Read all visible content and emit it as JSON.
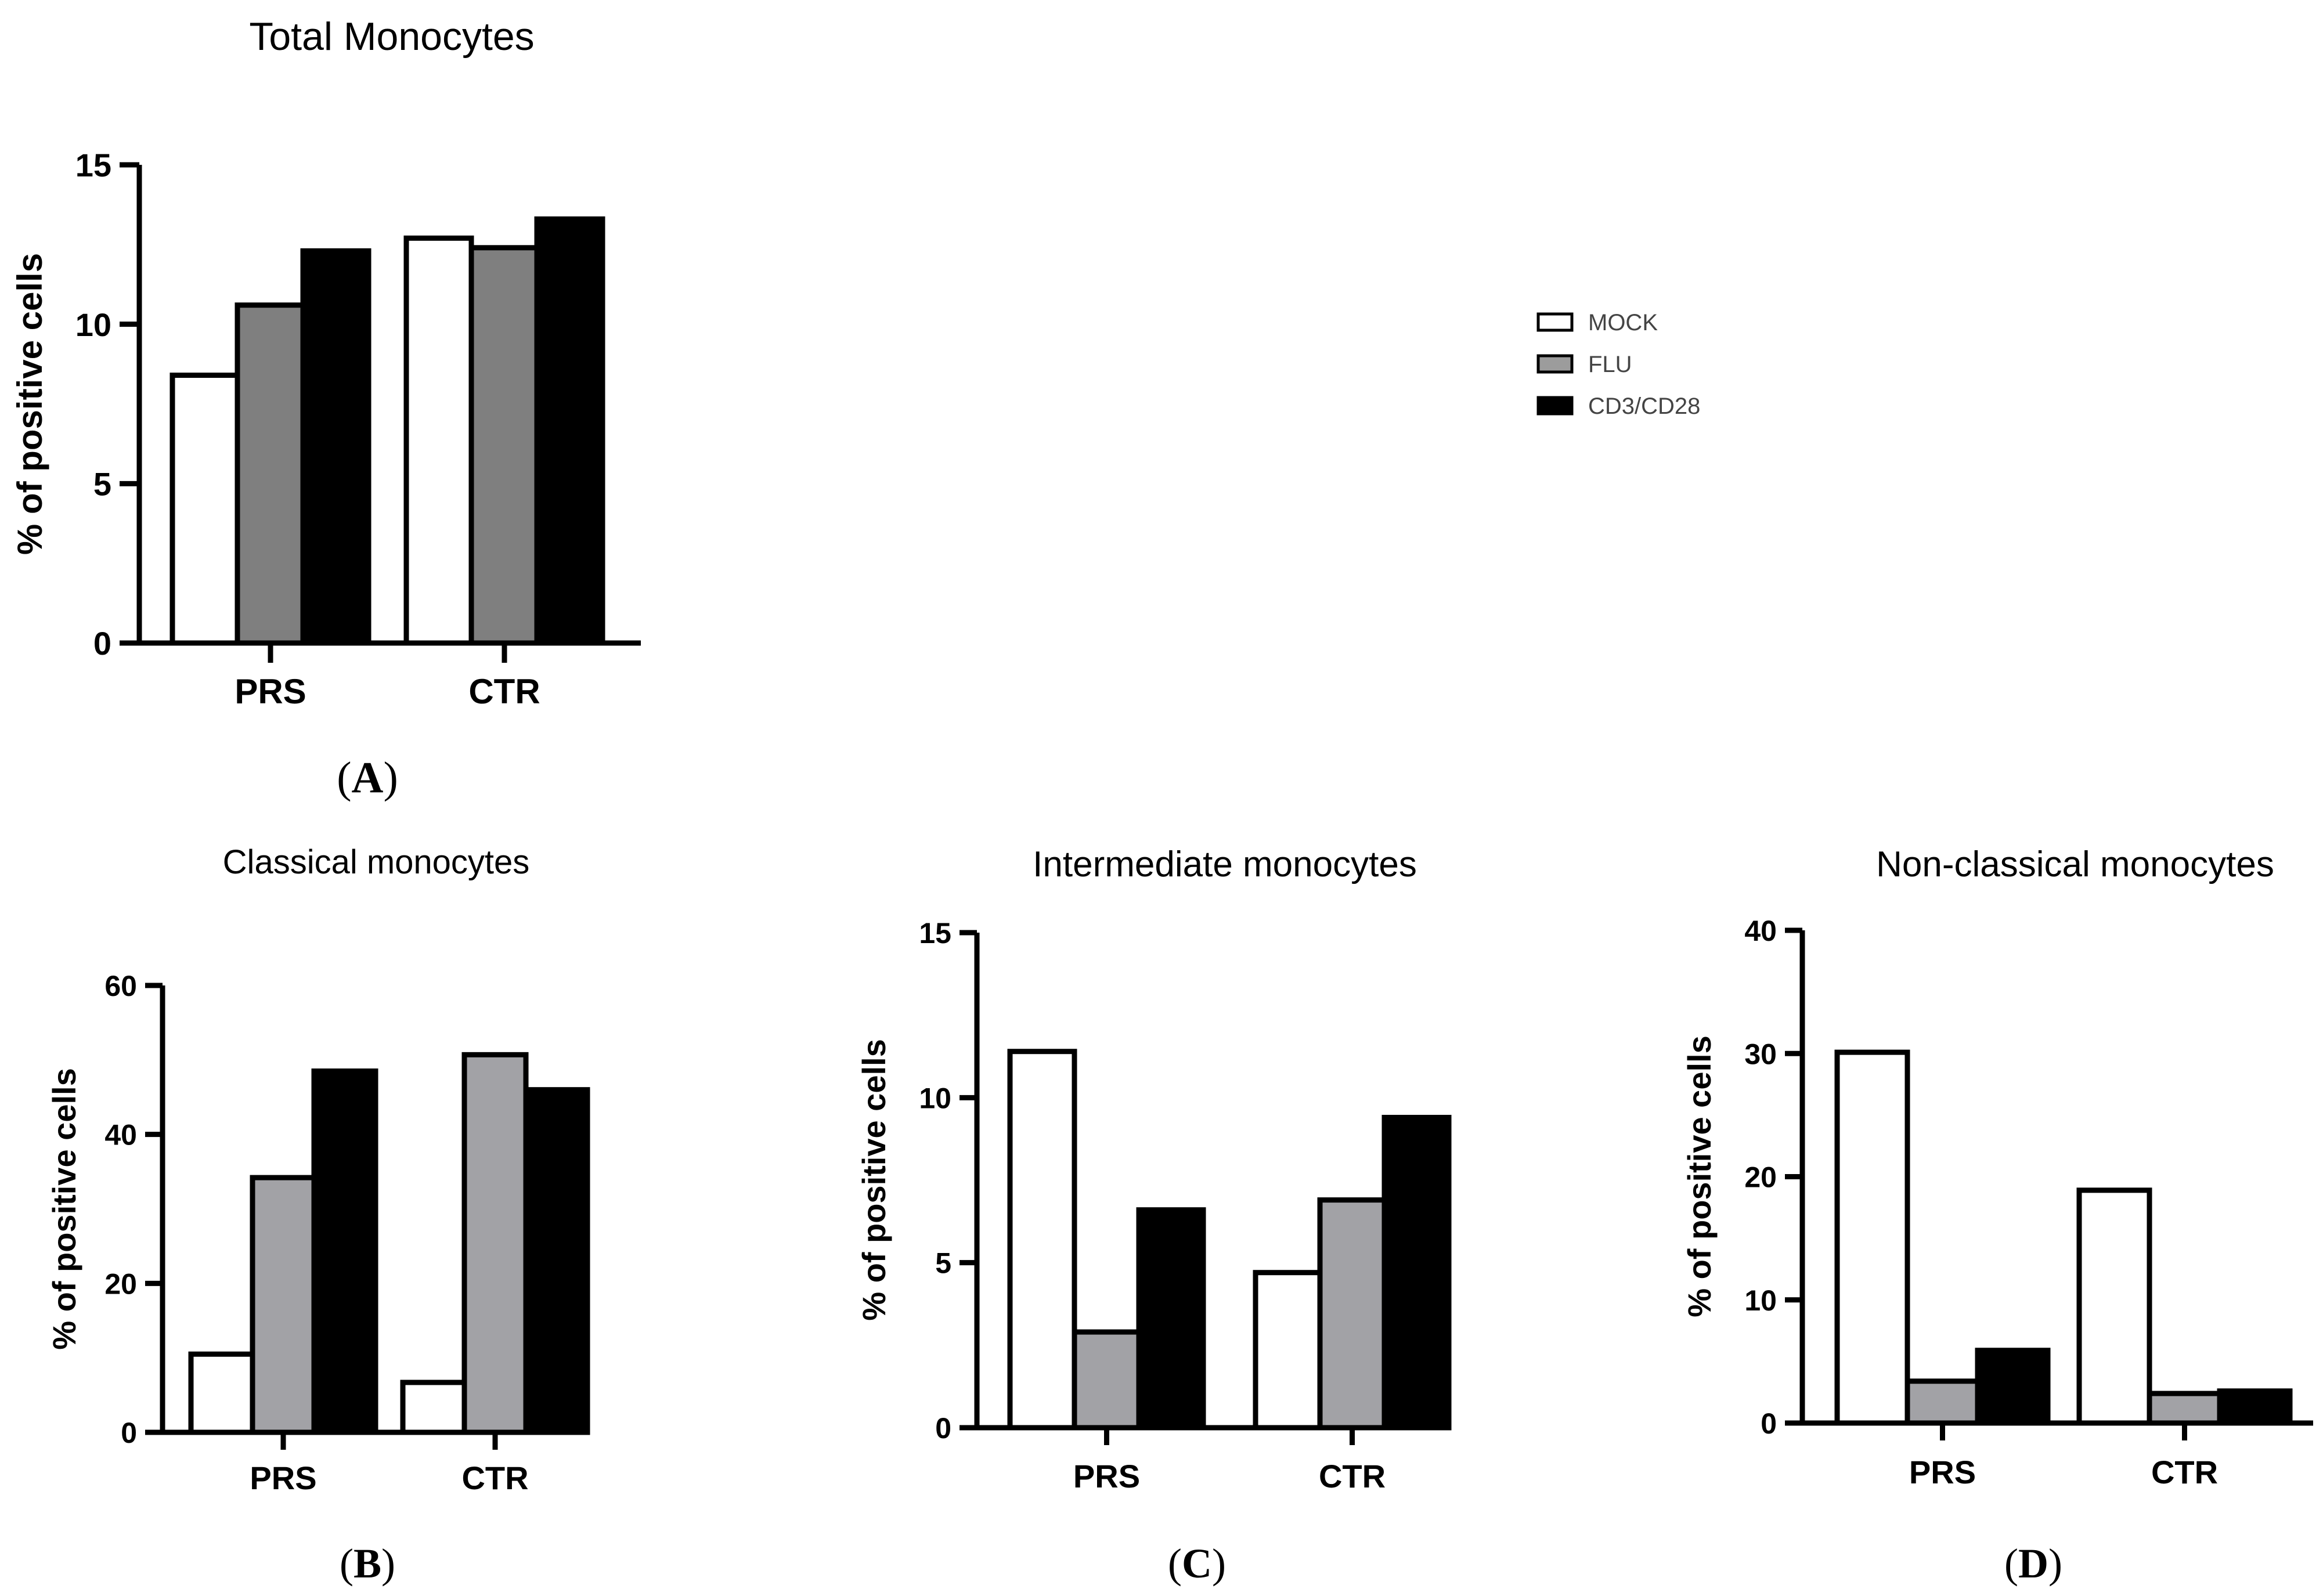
{
  "colors": {
    "MOCK": "#ffffff",
    "FLU_A": "#7f7f7f",
    "FLU": "#a3a3a8",
    "CD3/CD28": "#000000",
    "axis": "#000000"
  },
  "legend": {
    "items": [
      {
        "name": "MOCK",
        "color": "#ffffff"
      },
      {
        "name": "FLU",
        "color": "#9c9c9c"
      },
      {
        "name": "CD3/CD28",
        "color": "#000000"
      }
    ]
  },
  "chart_data": [
    {
      "id": "A",
      "type": "bar",
      "title": "Total Monocytes",
      "panel_label": "(A)",
      "panel_letter": "A",
      "ylabel": "% of positive cells",
      "xlabel": "",
      "categories": [
        "PRS",
        "CTR"
      ],
      "ylim": [
        0,
        15
      ],
      "yticks": [
        0,
        5,
        10,
        15
      ],
      "series": [
        {
          "name": "MOCK",
          "values": [
            8.4,
            12.7
          ]
        },
        {
          "name": "FLU",
          "values": [
            10.6,
            12.4
          ]
        },
        {
          "name": "CD3/CD28",
          "values": [
            12.3,
            13.3
          ]
        }
      ]
    },
    {
      "id": "B",
      "type": "bar",
      "title": "Classical monocytes",
      "panel_label": "(B)",
      "panel_letter": "B",
      "ylabel": "% of positive cells",
      "xlabel": "",
      "categories": [
        "PRS",
        "CTR"
      ],
      "ylim": [
        0,
        60
      ],
      "yticks": [
        0,
        20,
        40,
        60
      ],
      "series": [
        {
          "name": "MOCK",
          "values": [
            10.5,
            6.7
          ]
        },
        {
          "name": "FLU",
          "values": [
            34.2,
            50.7
          ]
        },
        {
          "name": "CD3/CD28",
          "values": [
            48.5,
            46.0
          ]
        }
      ]
    },
    {
      "id": "C",
      "type": "bar",
      "title": "Intermediate monocytes",
      "panel_label": "(C)",
      "panel_letter": "C",
      "ylabel": "% of positive cells",
      "xlabel": "",
      "categories": [
        "PRS",
        "CTR"
      ],
      "ylim": [
        0,
        15
      ],
      "yticks": [
        0,
        5,
        10,
        15
      ],
      "series": [
        {
          "name": "MOCK",
          "values": [
            11.4,
            4.7
          ]
        },
        {
          "name": "FLU",
          "values": [
            2.9,
            6.9
          ]
        },
        {
          "name": "CD3/CD28",
          "values": [
            6.6,
            9.4
          ]
        }
      ]
    },
    {
      "id": "D",
      "type": "bar",
      "title": "Non-classical monocytes",
      "panel_label": "(D)",
      "panel_letter": "D",
      "ylabel": "% of positive cells",
      "xlabel": "",
      "categories": [
        "PRS",
        "CTR"
      ],
      "ylim": [
        0,
        40
      ],
      "yticks": [
        0,
        10,
        20,
        30,
        40
      ],
      "series": [
        {
          "name": "MOCK",
          "values": [
            30.1,
            18.9
          ]
        },
        {
          "name": "FLU",
          "values": [
            3.4,
            2.4
          ]
        },
        {
          "name": "CD3/CD28",
          "values": [
            5.9,
            2.6
          ]
        }
      ]
    }
  ]
}
